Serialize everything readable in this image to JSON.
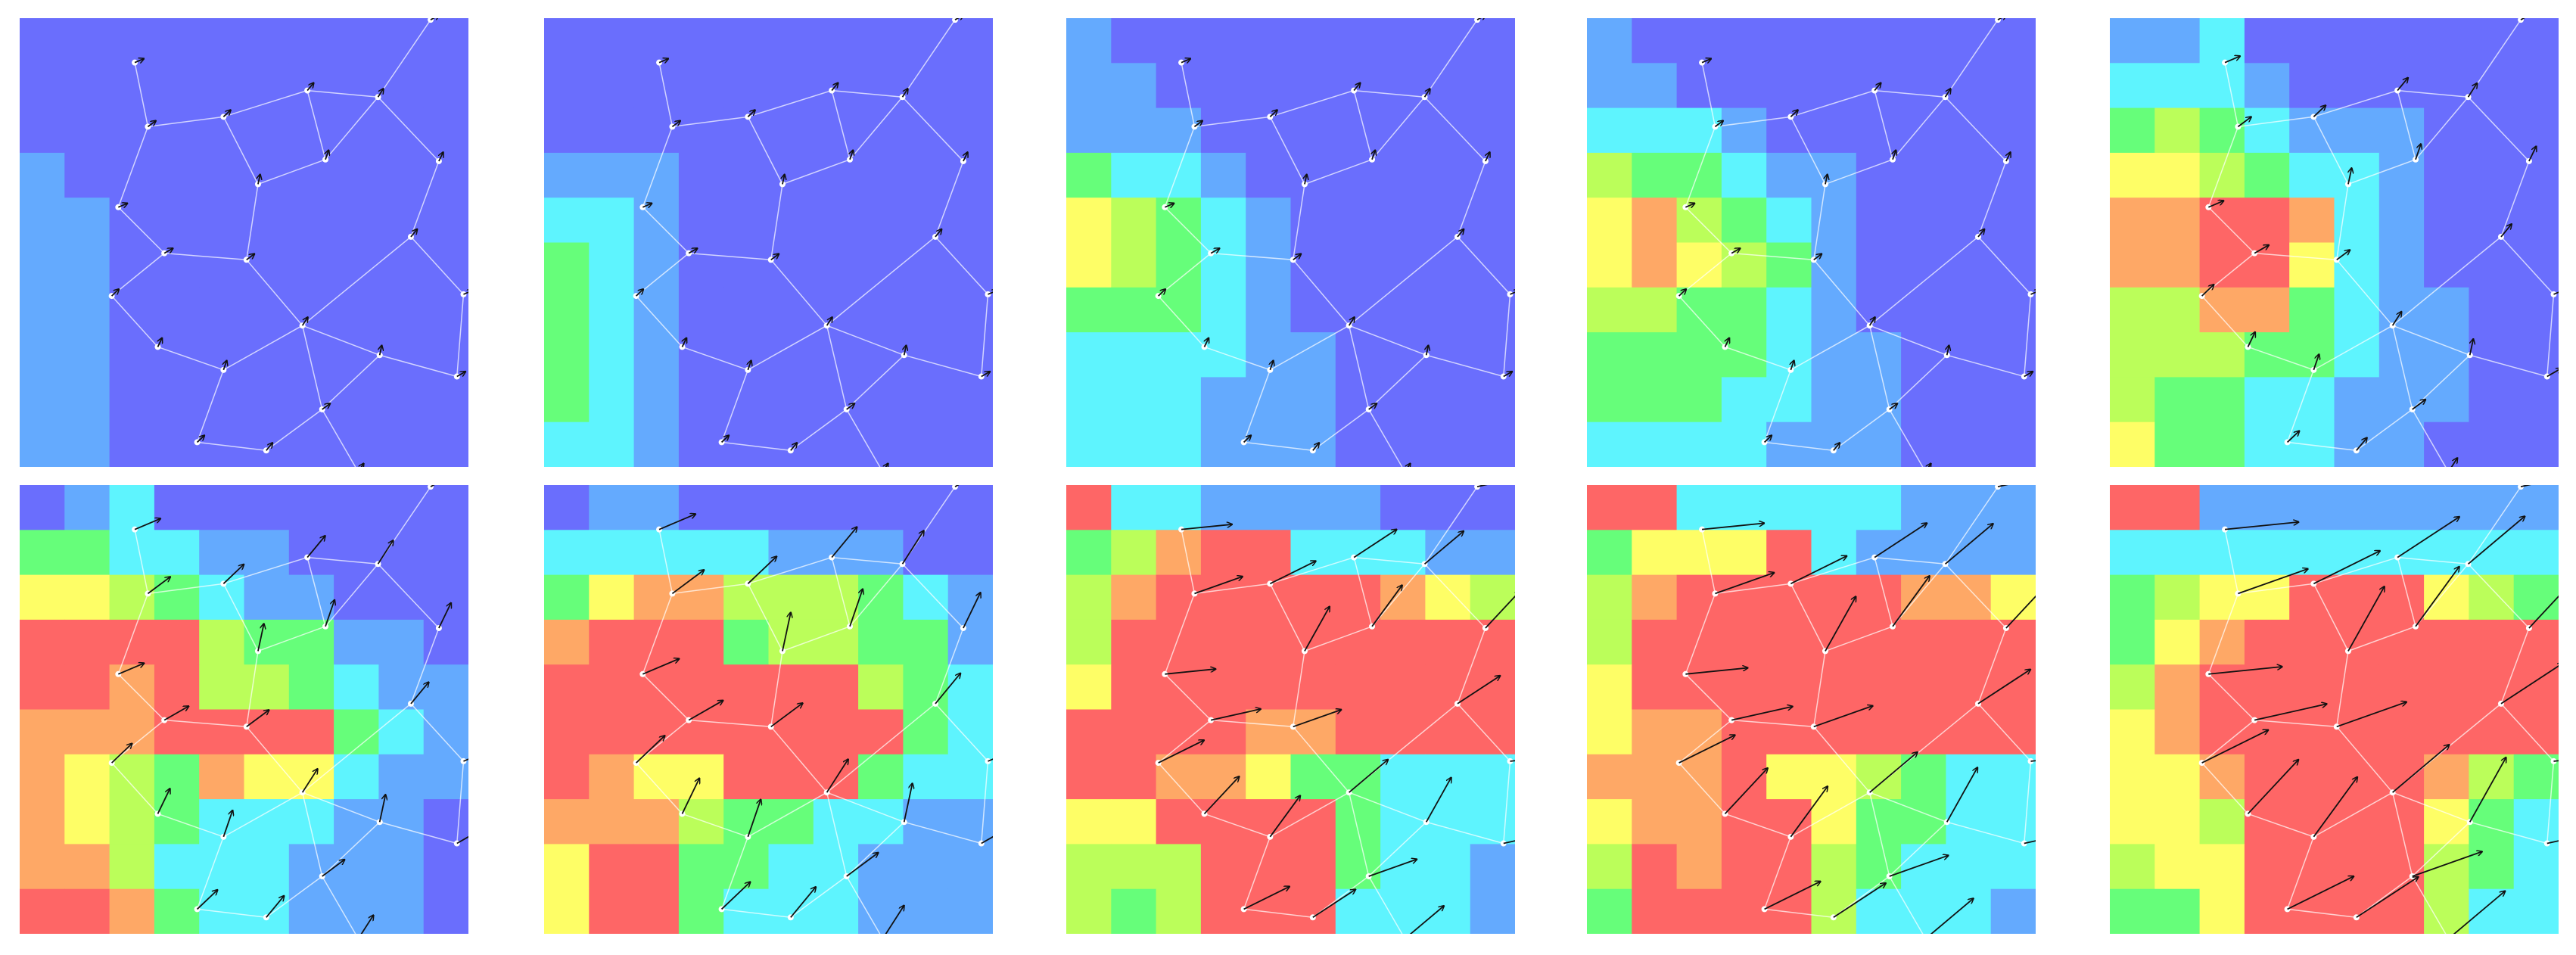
{
  "palette": [
    "#6a6efd",
    "#64aafe",
    "#5ef4fe",
    "#66fe7a",
    "#bbfe5a",
    "#fefe66",
    "#fea866",
    "#fe6666"
  ],
  "panels": [
    {
      "grid": [
        [
          0,
          0,
          0,
          0,
          0,
          0,
          0,
          0,
          0,
          0
        ],
        [
          0,
          0,
          0,
          0,
          0,
          0,
          0,
          0,
          0,
          0
        ],
        [
          0,
          0,
          0,
          0,
          0,
          0,
          0,
          0,
          0,
          0
        ],
        [
          1,
          0,
          0,
          0,
          0,
          0,
          0,
          0,
          0,
          0
        ],
        [
          1,
          1,
          0,
          0,
          0,
          0,
          0,
          0,
          0,
          0
        ],
        [
          1,
          1,
          0,
          0,
          0,
          0,
          0,
          0,
          0,
          0
        ],
        [
          1,
          1,
          0,
          0,
          0,
          0,
          0,
          0,
          0,
          0
        ],
        [
          1,
          1,
          0,
          0,
          0,
          0,
          0,
          0,
          0,
          0
        ],
        [
          1,
          1,
          0,
          0,
          0,
          0,
          0,
          0,
          0,
          0
        ],
        [
          1,
          1,
          0,
          0,
          0,
          0,
          0,
          0,
          0,
          0
        ]
      ]
    },
    {
      "grid": [
        [
          0,
          0,
          0,
          0,
          0,
          0,
          0,
          0,
          0,
          0
        ],
        [
          0,
          0,
          0,
          0,
          0,
          0,
          0,
          0,
          0,
          0
        ],
        [
          0,
          0,
          0,
          0,
          0,
          0,
          0,
          0,
          0,
          0
        ],
        [
          1,
          1,
          1,
          0,
          0,
          0,
          0,
          0,
          0,
          0
        ],
        [
          2,
          2,
          1,
          0,
          0,
          0,
          0,
          0,
          0,
          0
        ],
        [
          3,
          2,
          1,
          0,
          0,
          0,
          0,
          0,
          0,
          0
        ],
        [
          3,
          2,
          1,
          0,
          0,
          0,
          0,
          0,
          0,
          0
        ],
        [
          3,
          2,
          1,
          0,
          0,
          0,
          0,
          0,
          0,
          0
        ],
        [
          3,
          2,
          1,
          0,
          0,
          0,
          0,
          0,
          0,
          0
        ],
        [
          2,
          2,
          1,
          0,
          0,
          0,
          0,
          0,
          0,
          0
        ]
      ]
    },
    {
      "grid": [
        [
          1,
          0,
          0,
          0,
          0,
          0,
          0,
          0,
          0,
          0
        ],
        [
          1,
          1,
          0,
          0,
          0,
          0,
          0,
          0,
          0,
          0
        ],
        [
          1,
          1,
          1,
          0,
          0,
          0,
          0,
          0,
          0,
          0
        ],
        [
          3,
          2,
          2,
          1,
          0,
          0,
          0,
          0,
          0,
          0
        ],
        [
          5,
          4,
          3,
          2,
          1,
          0,
          0,
          0,
          0,
          0
        ],
        [
          5,
          4,
          3,
          2,
          1,
          0,
          0,
          0,
          0,
          0
        ],
        [
          3,
          3,
          3,
          2,
          1,
          0,
          0,
          0,
          0,
          0
        ],
        [
          2,
          2,
          2,
          2,
          1,
          1,
          0,
          0,
          0,
          0
        ],
        [
          2,
          2,
          2,
          1,
          1,
          1,
          0,
          0,
          0,
          0
        ],
        [
          2,
          2,
          2,
          1,
          1,
          1,
          0,
          0,
          0,
          0
        ]
      ]
    },
    {
      "grid": [
        [
          1,
          0,
          0,
          0,
          0,
          0,
          0,
          0,
          0,
          0
        ],
        [
          1,
          1,
          0,
          0,
          0,
          0,
          0,
          0,
          0,
          0
        ],
        [
          2,
          2,
          2,
          1,
          0,
          0,
          0,
          0,
          0,
          0
        ],
        [
          4,
          3,
          3,
          2,
          1,
          1,
          0,
          0,
          0,
          0
        ],
        [
          5,
          6,
          4,
          3,
          2,
          1,
          0,
          0,
          0,
          0
        ],
        [
          5,
          6,
          5,
          4,
          3,
          1,
          0,
          0,
          0,
          0
        ],
        [
          4,
          4,
          3,
          3,
          2,
          1,
          0,
          0,
          0,
          0
        ],
        [
          3,
          3,
          3,
          3,
          2,
          1,
          1,
          0,
          0,
          0
        ],
        [
          3,
          3,
          3,
          2,
          2,
          1,
          1,
          0,
          0,
          0
        ],
        [
          2,
          2,
          2,
          2,
          1,
          1,
          1,
          0,
          0,
          0
        ]
      ]
    },
    {
      "grid": [
        [
          1,
          1,
          2,
          0,
          0,
          0,
          0,
          0,
          0,
          0
        ],
        [
          2,
          2,
          2,
          1,
          0,
          0,
          0,
          0,
          0,
          0
        ],
        [
          3,
          4,
          3,
          2,
          1,
          1,
          1,
          0,
          0,
          0
        ],
        [
          5,
          5,
          4,
          3,
          2,
          2,
          1,
          0,
          0,
          0
        ],
        [
          6,
          6,
          7,
          7,
          6,
          2,
          1,
          0,
          0,
          0
        ],
        [
          6,
          6,
          7,
          7,
          5,
          2,
          1,
          0,
          0,
          0
        ],
        [
          4,
          4,
          6,
          6,
          3,
          2,
          1,
          1,
          0,
          0
        ],
        [
          4,
          4,
          4,
          3,
          3,
          2,
          1,
          1,
          0,
          0
        ],
        [
          4,
          3,
          3,
          2,
          2,
          1,
          1,
          1,
          0,
          0
        ],
        [
          5,
          3,
          3,
          2,
          2,
          1,
          1,
          0,
          0,
          0
        ]
      ]
    },
    {
      "grid": [
        [
          0,
          1,
          2,
          0,
          0,
          0,
          0,
          0,
          0,
          0
        ],
        [
          3,
          3,
          2,
          2,
          1,
          1,
          0,
          0,
          0,
          0
        ],
        [
          5,
          5,
          4,
          3,
          2,
          1,
          1,
          0,
          0,
          0
        ],
        [
          7,
          7,
          7,
          7,
          4,
          3,
          3,
          1,
          1,
          0
        ],
        [
          7,
          7,
          6,
          7,
          4,
          4,
          3,
          2,
          1,
          1
        ],
        [
          6,
          6,
          6,
          7,
          7,
          7,
          7,
          3,
          2,
          1
        ],
        [
          6,
          5,
          4,
          3,
          6,
          5,
          5,
          2,
          1,
          1
        ],
        [
          6,
          5,
          4,
          3,
          2,
          2,
          2,
          1,
          1,
          0
        ],
        [
          6,
          6,
          4,
          2,
          2,
          2,
          1,
          1,
          1,
          0
        ],
        [
          7,
          7,
          6,
          3,
          2,
          2,
          1,
          1,
          1,
          0
        ]
      ]
    },
    {
      "grid": [
        [
          0,
          1,
          1,
          0,
          0,
          0,
          0,
          0,
          0,
          0
        ],
        [
          2,
          2,
          2,
          2,
          2,
          1,
          1,
          1,
          0,
          0
        ],
        [
          3,
          5,
          6,
          6,
          4,
          4,
          4,
          3,
          2,
          1
        ],
        [
          6,
          7,
          7,
          7,
          3,
          4,
          4,
          3,
          3,
          1
        ],
        [
          7,
          7,
          7,
          7,
          7,
          7,
          7,
          4,
          3,
          2
        ],
        [
          7,
          7,
          7,
          7,
          7,
          7,
          7,
          7,
          3,
          2
        ],
        [
          7,
          6,
          5,
          5,
          7,
          7,
          7,
          3,
          2,
          2
        ],
        [
          6,
          6,
          6,
          4,
          3,
          3,
          2,
          2,
          1,
          1
        ],
        [
          5,
          7,
          7,
          3,
          3,
          2,
          2,
          1,
          1,
          1
        ],
        [
          5,
          7,
          7,
          3,
          2,
          2,
          2,
          1,
          1,
          1
        ]
      ]
    },
    {
      "grid": [
        [
          7,
          2,
          2,
          1,
          1,
          1,
          1,
          0,
          0,
          0
        ],
        [
          3,
          4,
          6,
          7,
          7,
          2,
          2,
          2,
          1,
          1
        ],
        [
          4,
          6,
          7,
          7,
          7,
          7,
          7,
          6,
          5,
          4
        ],
        [
          4,
          7,
          7,
          7,
          7,
          7,
          7,
          7,
          7,
          7
        ],
        [
          5,
          7,
          7,
          7,
          7,
          7,
          7,
          7,
          7,
          7
        ],
        [
          7,
          7,
          7,
          7,
          6,
          6,
          7,
          7,
          7,
          7
        ],
        [
          7,
          7,
          6,
          6,
          5,
          3,
          3,
          2,
          2,
          2
        ],
        [
          5,
          5,
          7,
          7,
          7,
          7,
          3,
          2,
          2,
          2
        ],
        [
          4,
          4,
          4,
          7,
          7,
          7,
          3,
          2,
          2,
          1
        ],
        [
          4,
          3,
          4,
          7,
          7,
          7,
          2,
          2,
          2,
          1
        ]
      ]
    },
    {
      "grid": [
        [
          7,
          7,
          2,
          2,
          2,
          2,
          2,
          1,
          1,
          1
        ],
        [
          3,
          5,
          5,
          5,
          7,
          2,
          1,
          1,
          1,
          1
        ],
        [
          4,
          6,
          7,
          7,
          7,
          7,
          7,
          6,
          6,
          5
        ],
        [
          4,
          7,
          7,
          7,
          7,
          7,
          7,
          7,
          7,
          7
        ],
        [
          5,
          7,
          7,
          7,
          7,
          7,
          7,
          7,
          7,
          7
        ],
        [
          5,
          6,
          6,
          7,
          7,
          7,
          7,
          7,
          7,
          7
        ],
        [
          6,
          6,
          6,
          7,
          5,
          5,
          4,
          3,
          2,
          2
        ],
        [
          5,
          6,
          6,
          7,
          7,
          5,
          3,
          3,
          2,
          2
        ],
        [
          4,
          7,
          6,
          7,
          7,
          4,
          3,
          2,
          2,
          2
        ],
        [
          3,
          7,
          7,
          7,
          7,
          4,
          2,
          2,
          2,
          1
        ]
      ]
    },
    {
      "grid": [
        [
          7,
          7,
          1,
          1,
          1,
          1,
          1,
          1,
          1,
          1
        ],
        [
          2,
          2,
          2,
          2,
          2,
          2,
          2,
          2,
          2,
          2
        ],
        [
          3,
          4,
          5,
          5,
          7,
          7,
          7,
          5,
          4,
          3
        ],
        [
          3,
          5,
          6,
          7,
          7,
          7,
          7,
          7,
          7,
          7
        ],
        [
          4,
          6,
          7,
          7,
          7,
          7,
          7,
          7,
          7,
          7
        ],
        [
          5,
          6,
          7,
          7,
          7,
          7,
          7,
          7,
          7,
          7
        ],
        [
          5,
          5,
          6,
          7,
          7,
          7,
          7,
          6,
          4,
          3
        ],
        [
          5,
          5,
          4,
          7,
          7,
          7,
          7,
          5,
          3,
          2
        ],
        [
          4,
          5,
          5,
          7,
          7,
          7,
          7,
          4,
          3,
          2
        ],
        [
          3,
          3,
          5,
          7,
          7,
          7,
          7,
          4,
          2,
          2
        ]
      ]
    }
  ]
}
